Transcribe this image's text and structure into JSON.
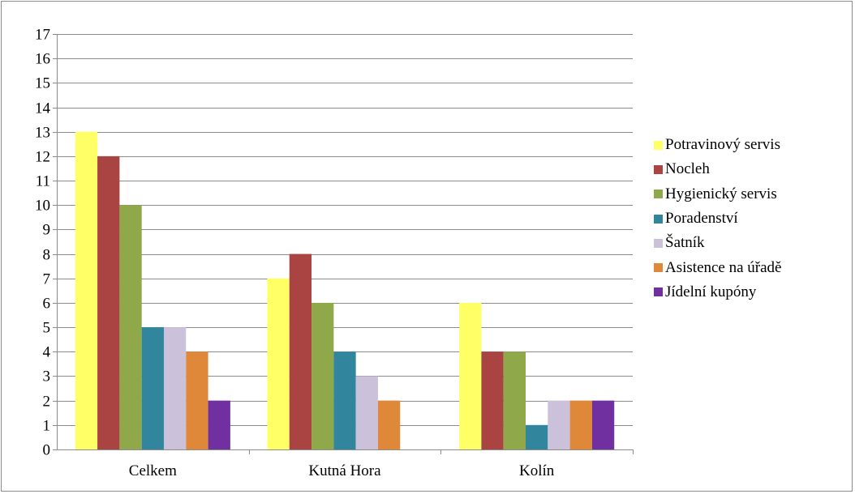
{
  "chart_data": {
    "type": "bar",
    "categories": [
      "Celkem",
      "Kutná Hora",
      "Kolín"
    ],
    "series": [
      {
        "name": "Potravinový servis",
        "color": "#ffff66",
        "values": [
          13,
          7,
          6
        ]
      },
      {
        "name": "Nocleh",
        "color": "#a94442",
        "values": [
          12,
          8,
          4
        ]
      },
      {
        "name": "Hygienický servis",
        "color": "#8ea84a",
        "values": [
          10,
          6,
          4
        ]
      },
      {
        "name": "Poradenství",
        "color": "#31859c",
        "values": [
          5,
          4,
          1
        ]
      },
      {
        "name": "Šatník",
        "color": "#ccc1da",
        "values": [
          5,
          3,
          2
        ]
      },
      {
        "name": "Asistence na úřadě",
        "color": "#e0883a",
        "values": [
          4,
          2,
          2
        ]
      },
      {
        "name": "Jídelní kupóny",
        "color": "#7030a0",
        "values": [
          2,
          0,
          2
        ]
      }
    ],
    "yticks": [
      "0",
      "1",
      "2",
      "3",
      "4",
      "5",
      "6",
      "7",
      "8",
      "9",
      "10",
      "11",
      "12",
      "13",
      "14",
      "15",
      "16",
      "17"
    ],
    "ylim": [
      0,
      17
    ],
    "grid": true,
    "legend_position": "right"
  }
}
